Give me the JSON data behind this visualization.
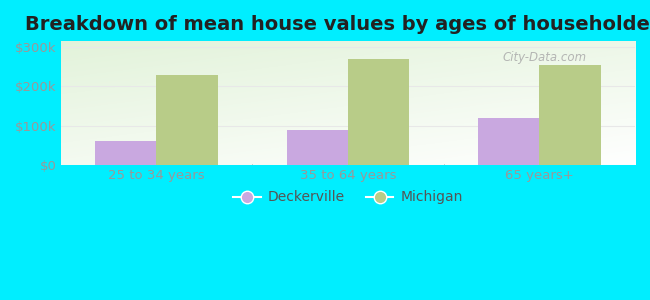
{
  "title": "Breakdown of mean house values by ages of householders",
  "categories": [
    "25 to 34 years",
    "35 to 64 years",
    "65 years+"
  ],
  "deckerville_values": [
    60000,
    90000,
    120000
  ],
  "michigan_values": [
    230000,
    270000,
    255000
  ],
  "deckerville_color": "#c9a8e0",
  "michigan_color": "#b8cc88",
  "bar_width": 0.32,
  "ylim": [
    0,
    315000
  ],
  "yticks": [
    0,
    100000,
    200000,
    300000
  ],
  "ytick_labels": [
    "$0",
    "$100k",
    "$200k",
    "$300k"
  ],
  "outer_bg": "#00eeff",
  "legend_labels": [
    "Deckerville",
    "Michigan"
  ],
  "title_fontsize": 14,
  "tick_fontsize": 9.5,
  "legend_fontsize": 10,
  "grid_color": "#e8e8e8",
  "tick_color": "#999999",
  "title_color": "#222222",
  "watermark": "City-Data.com"
}
